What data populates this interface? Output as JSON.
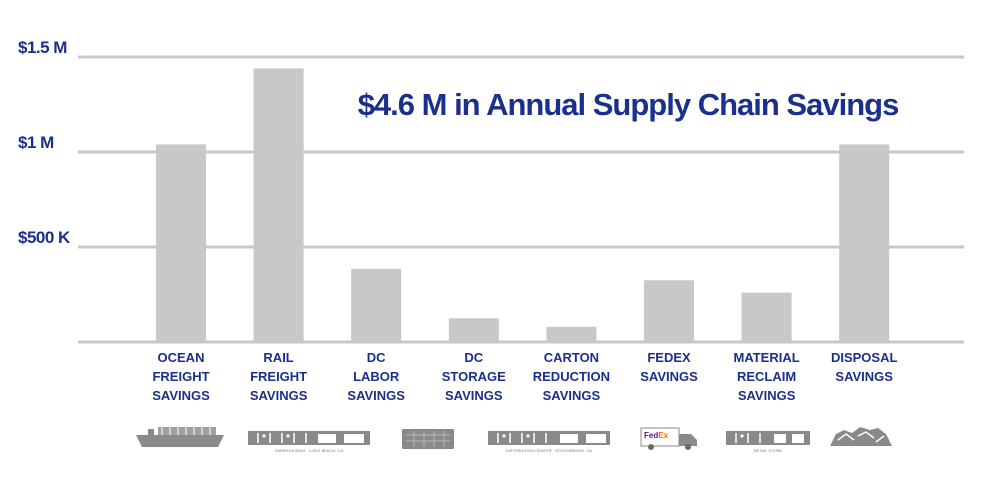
{
  "chart_data": {
    "type": "bar",
    "title": "$4.6 M in Annual Supply Chain Savings",
    "categories": [
      "OCEAN FREIGHT SAVINGS",
      "RAIL FREIGHT SAVINGS",
      "DC LABOR SAVINGS",
      "DC STORAGE SAVINGS",
      "CARTON REDUCTION SAVINGS",
      "FEDEX SAVINGS",
      "MATERIAL RECLAIM SAVINGS",
      "DISPOSAL SAVINGS"
    ],
    "category_lines": [
      [
        "OCEAN",
        "FREIGHT",
        "SAVINGS"
      ],
      [
        "RAIL",
        "FREIGHT",
        "SAVINGS"
      ],
      [
        "DC",
        "LABOR",
        "SAVINGS"
      ],
      [
        "DC",
        "STORAGE",
        "SAVINGS"
      ],
      [
        "CARTON",
        "REDUCTION",
        "SAVINGS"
      ],
      [
        "FEDEX",
        "SAVINGS"
      ],
      [
        "MATERIAL",
        "RECLAIM",
        "SAVINGS"
      ],
      [
        "DISPOSAL",
        "SAVINGS"
      ]
    ],
    "values": [
      1040000,
      1440000,
      385000,
      125000,
      80000,
      325000,
      260000,
      1040000
    ],
    "ylim": [
      0,
      1500000
    ],
    "yticks": [
      {
        "value": 500000,
        "label": "$500 K"
      },
      {
        "value": 1000000,
        "label": "$1 M"
      },
      {
        "value": 1500000,
        "label": "$1.5 M"
      }
    ],
    "xlabel": "",
    "ylabel": "",
    "grid": true,
    "icons": [
      "ship-icon",
      "warehouse-icon",
      "container-icon",
      "distribution-center-icon",
      "fedex-truck-icon",
      "retail-store-icon",
      "disposal-pile-icon"
    ],
    "icon_captions": {
      "warehouse": "WAREHOUSING · LONG BEACH, CA",
      "distribution": "DISTRIBUTION CENTER · STOCKBRIDGE, GA",
      "retail": "RETAIL STORE",
      "fedex_fed": "Fed",
      "fedex_ex": "Ex"
    }
  },
  "colors": {
    "bar": "#c8c8c8",
    "grid": "#c8c8c8",
    "text": "#1b2f8c",
    "icon": "#8a8a8a"
  }
}
